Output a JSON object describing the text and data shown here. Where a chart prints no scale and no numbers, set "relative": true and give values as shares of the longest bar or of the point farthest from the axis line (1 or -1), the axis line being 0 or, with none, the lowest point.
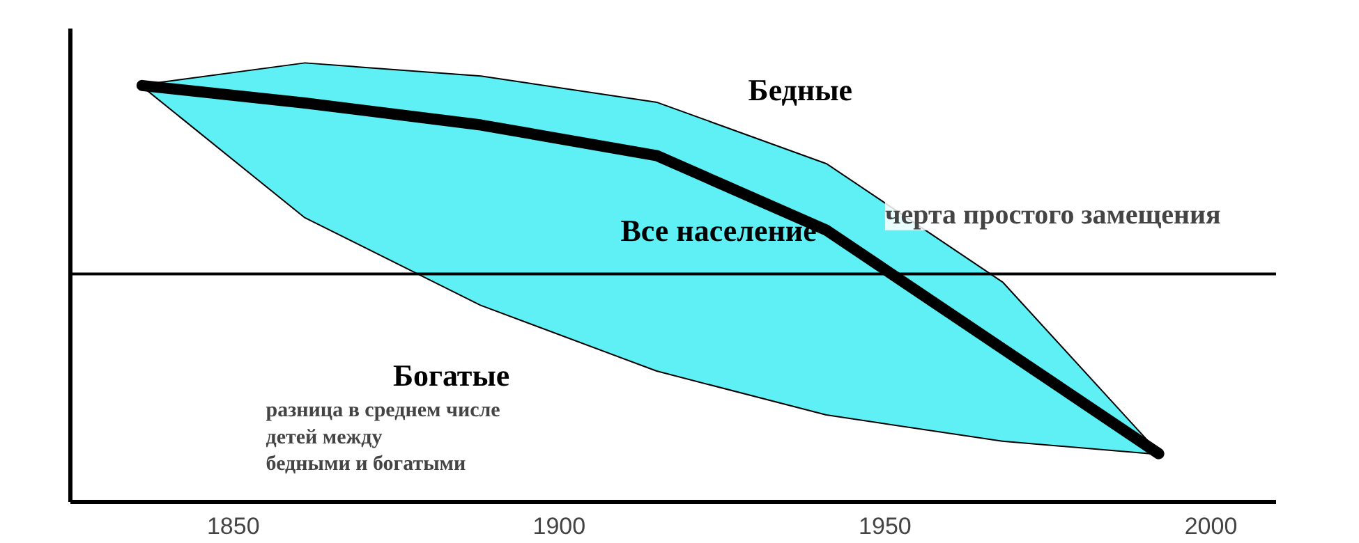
{
  "chart_data": {
    "type": "line",
    "relative": true,
    "x": [
      1836,
      1861,
      1888,
      1915,
      1941,
      1968,
      1992
    ],
    "xlim": [
      1825,
      2010
    ],
    "xticks": [
      1850,
      1900,
      1950,
      2000
    ],
    "series": [
      {
        "name": "Бедные",
        "color": "#000000",
        "values": [
          0.95,
          1.0,
          0.97,
          0.91,
          0.77,
          0.5,
          0.11
        ]
      },
      {
        "name": "Богатые",
        "color": "#000000",
        "values": [
          0.95,
          0.65,
          0.45,
          0.3,
          0.2,
          0.14,
          0.11
        ]
      },
      {
        "name": "Все население",
        "color": "#000000",
        "values": [
          0.95,
          0.91,
          0.86,
          0.79,
          0.62,
          0.35,
          0.11
        ],
        "lower": [
          0.95,
          0.65,
          0.45,
          0.3,
          0.2,
          0.14,
          0.11
        ],
        "upper": [
          0.95,
          1.0,
          0.97,
          0.91,
          0.77,
          0.5,
          0.11
        ]
      }
    ],
    "ref_lines": [
      {
        "axis": "y",
        "value": 0.52,
        "label": "черта простого замещения",
        "color": "#000000"
      }
    ],
    "annotations": [
      "разница в среднем числе\nдетей между\nбедными и богатыми"
    ],
    "grid": false
  }
}
